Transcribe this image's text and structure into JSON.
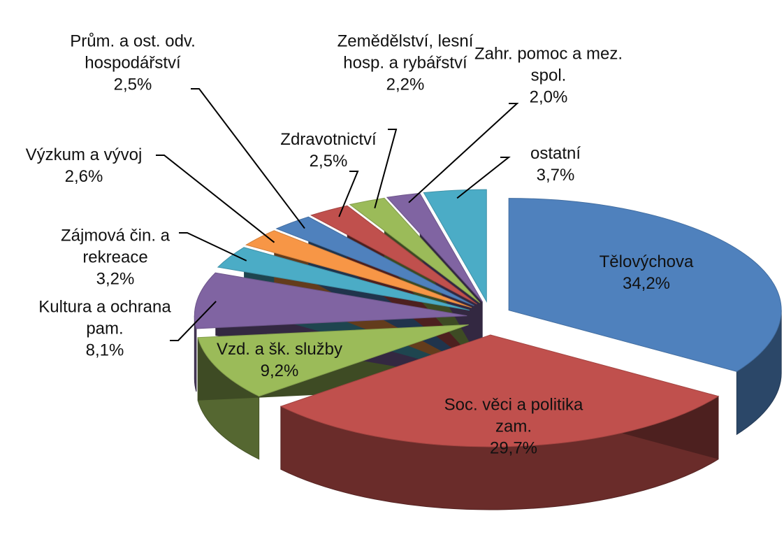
{
  "chart_data": {
    "type": "pie3d",
    "categories": [
      "Tělovýchova",
      "Soc. věci a politika zam.",
      "Vzd. a šk. služby",
      "Kultura a ochrana pam.",
      "Zájmová čin. a rekreace",
      "Výzkum a vývoj",
      "Prům. a ost. odv. hospodářství",
      "Zdravotnictví",
      "Zemědělství, lesní hosp. a rybářství",
      "Zahr. pomoc a mez. spol.",
      "ostatní"
    ],
    "values": [
      34.2,
      29.7,
      9.2,
      8.1,
      3.2,
      2.6,
      2.5,
      2.5,
      2.2,
      2.0,
      3.7
    ],
    "value_labels": [
      "34,2%",
      "29,7%",
      "9,2%",
      "8,1%",
      "3,2%",
      "2,6%",
      "2,5%",
      "2,5%",
      "2,2%",
      "2,0%",
      "3,7%"
    ],
    "colors": [
      "#4f81bd",
      "#c0504d",
      "#9bbb59",
      "#8064a2",
      "#4bacc6",
      "#f79646",
      "#4f81bd",
      "#c0504d",
      "#9bbb59",
      "#8064a2",
      "#4bacc6"
    ]
  }
}
